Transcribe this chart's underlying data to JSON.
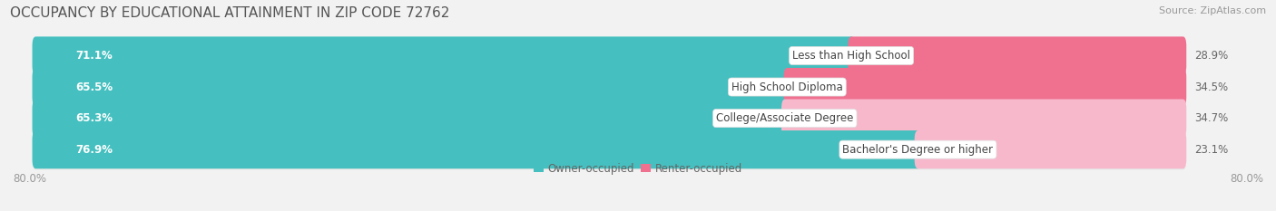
{
  "title": "OCCUPANCY BY EDUCATIONAL ATTAINMENT IN ZIP CODE 72762",
  "source": "Source: ZipAtlas.com",
  "categories": [
    "Less than High School",
    "High School Diploma",
    "College/Associate Degree",
    "Bachelor's Degree or higher"
  ],
  "owner_values": [
    71.1,
    65.5,
    65.3,
    76.9
  ],
  "renter_values": [
    28.9,
    34.5,
    34.7,
    23.1
  ],
  "owner_color": "#45BFBF",
  "renter_color": "#F07090",
  "renter_color_light": "#F8B8CC",
  "owner_label": "Owner-occupied",
  "renter_label": "Renter-occupied",
  "bar_total": 100.0,
  "bar_height": 0.62,
  "background_color": "#f2f2f2",
  "bar_bg_color": "#e8e8e8",
  "bar_shadow_color": "#cccccc",
  "title_fontsize": 11,
  "source_fontsize": 8,
  "label_fontsize": 8.5,
  "tick_fontsize": 8.5,
  "pct_fontsize": 8.5,
  "cat_fontsize": 8.5
}
